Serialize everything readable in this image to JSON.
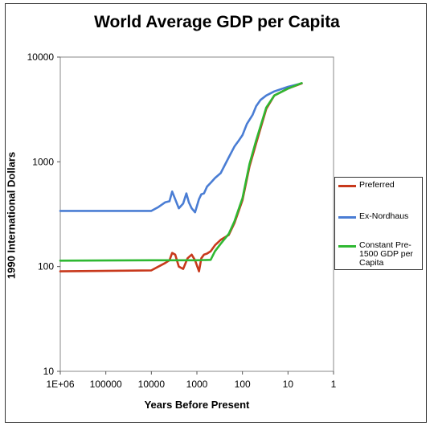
{
  "chart_data": {
    "type": "line",
    "title": "World Average GDP per Capita",
    "xlabel": "Years Before Present",
    "ylabel": "1990 International Dollars",
    "x_scale": "log-reversed",
    "y_scale": "log",
    "xlim": [
      1000000,
      1
    ],
    "ylim": [
      10,
      10000
    ],
    "x_ticks": [
      "1E+06",
      "100000",
      "10000",
      "1000",
      "100",
      "10",
      "1"
    ],
    "x_tick_values": [
      1000000,
      100000,
      10000,
      1000,
      100,
      10,
      1
    ],
    "y_ticks": [
      "10",
      "100",
      "1000",
      "10000"
    ],
    "y_tick_values": [
      10,
      100,
      1000,
      10000
    ],
    "grid": false,
    "legend_position": "right",
    "series": [
      {
        "name": "Preferred",
        "color": "#c8391c",
        "x": [
          1000000,
          10000,
          7000,
          5000,
          4000,
          3500,
          3000,
          2500,
          2000,
          1600,
          1300,
          1100,
          900,
          800,
          700,
          600,
          500,
          400,
          300,
          200,
          150,
          100,
          70,
          50,
          30,
          20,
          10,
          5
        ],
        "y": [
          90,
          92,
          100,
          108,
          115,
          135,
          130,
          100,
          95,
          120,
          130,
          115,
          90,
          120,
          130,
          133,
          140,
          160,
          180,
          200,
          260,
          430,
          900,
          1500,
          3200,
          4300,
          5000,
          5600
        ]
      },
      {
        "name": "Ex-Nordhaus",
        "color": "#4a7dd4",
        "x": [
          1000000,
          10000,
          7000,
          5000,
          4000,
          3500,
          3000,
          2500,
          2000,
          1700,
          1500,
          1300,
          1100,
          900,
          800,
          700,
          600,
          500,
          400,
          300,
          200,
          150,
          120,
          100,
          80,
          60,
          50,
          40,
          30,
          20,
          10,
          5
        ],
        "y": [
          340,
          340,
          370,
          410,
          420,
          520,
          440,
          360,
          400,
          500,
          410,
          360,
          330,
          440,
          490,
          500,
          580,
          630,
          700,
          780,
          1100,
          1400,
          1600,
          1800,
          2300,
          2800,
          3400,
          3900,
          4300,
          4700,
          5200,
          5600
        ]
      },
      {
        "name": "Constant Pre-1500 GDP per Capita",
        "color": "#2fb832",
        "x": [
          1000000,
          10000,
          1000,
          500,
          400,
          300,
          200,
          150,
          100,
          70,
          50,
          30,
          20,
          10,
          5
        ],
        "y": [
          114,
          115,
          115,
          116,
          140,
          165,
          205,
          270,
          450,
          950,
          1600,
          3300,
          4300,
          5000,
          5650
        ]
      }
    ]
  }
}
